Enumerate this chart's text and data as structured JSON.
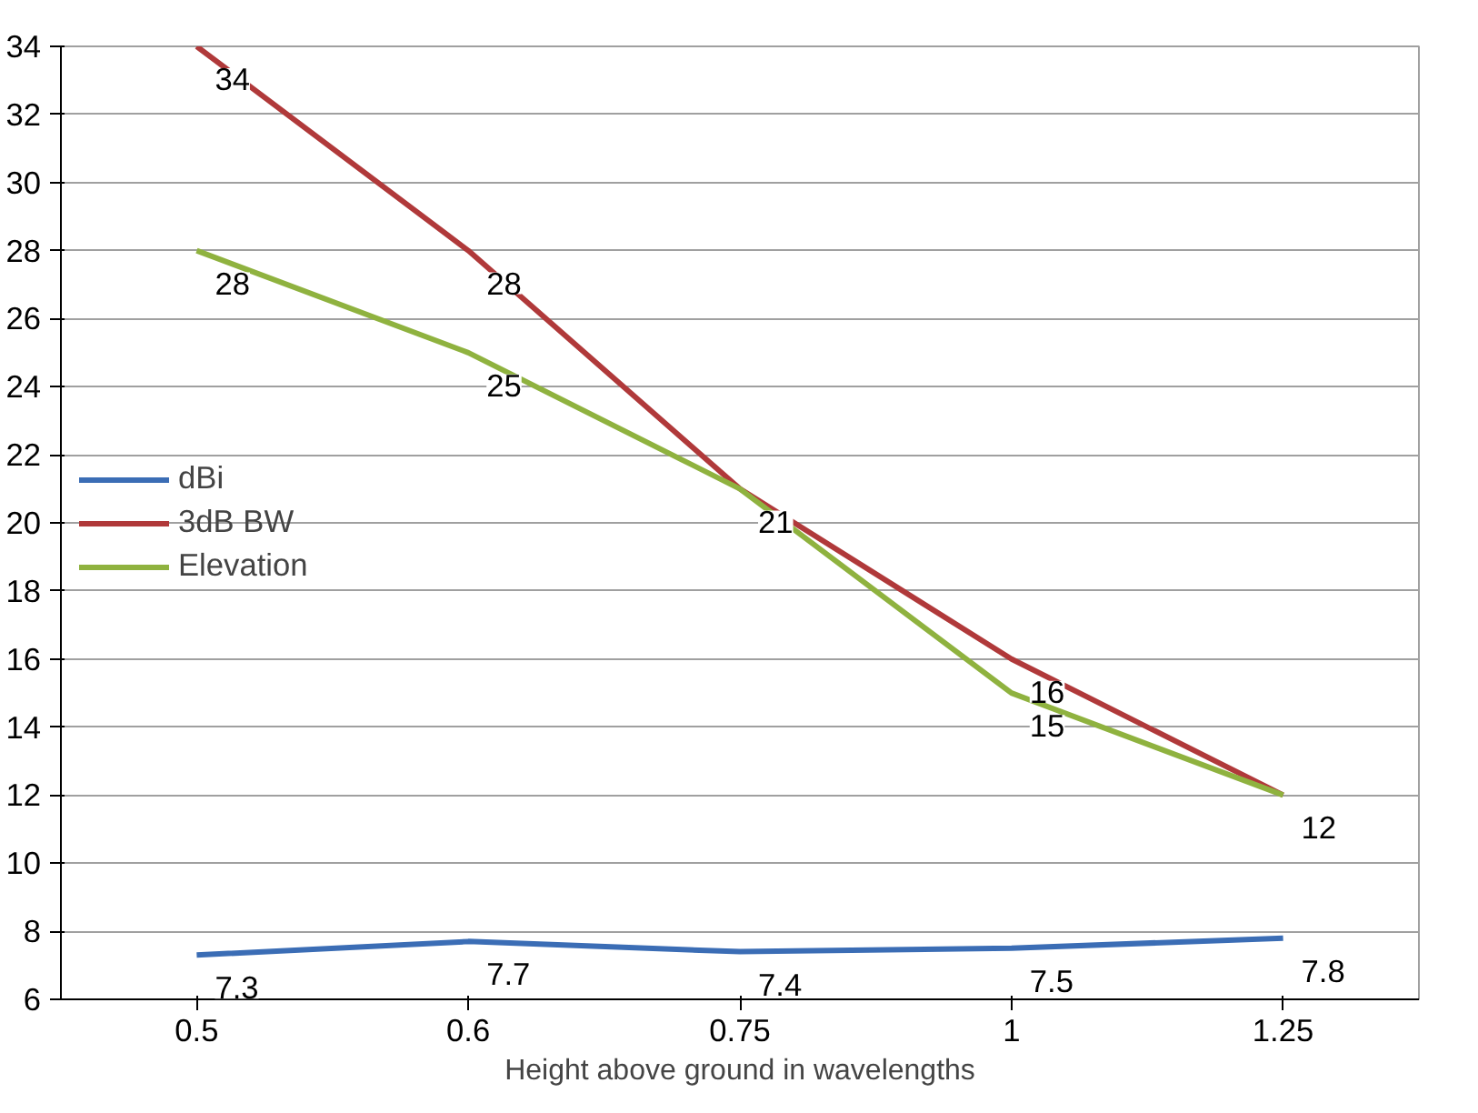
{
  "chart_data": {
    "type": "line",
    "xlabel": "Height above ground in wavelengths",
    "categories": [
      "0.5",
      "0.6",
      "0.75",
      "1",
      "1.25"
    ],
    "series": [
      {
        "name": "dBi",
        "color": "#3b6db5",
        "values": [
          7.3,
          7.7,
          7.4,
          7.5,
          7.8
        ],
        "value_labels": [
          "7.3",
          "7.7",
          "7.4",
          "7.5",
          "7.8"
        ]
      },
      {
        "name": "3dB BW",
        "color": "#b0393a",
        "values": [
          34,
          28,
          21,
          16,
          12
        ],
        "value_labels": [
          "34",
          "28",
          "21",
          "16",
          "12"
        ]
      },
      {
        "name": "Elevation",
        "color": "#8fb23f",
        "values": [
          28,
          25,
          21,
          15,
          12
        ],
        "value_labels": [
          "28",
          "25",
          null,
          "15",
          null
        ]
      }
    ],
    "ylim": [
      6,
      34
    ],
    "yticks": [
      6,
      8,
      10,
      12,
      14,
      16,
      18,
      20,
      22,
      24,
      26,
      28,
      30,
      32,
      34
    ],
    "grid": "y",
    "legend": "center left",
    "marker": "none",
    "line_style": "solid"
  }
}
